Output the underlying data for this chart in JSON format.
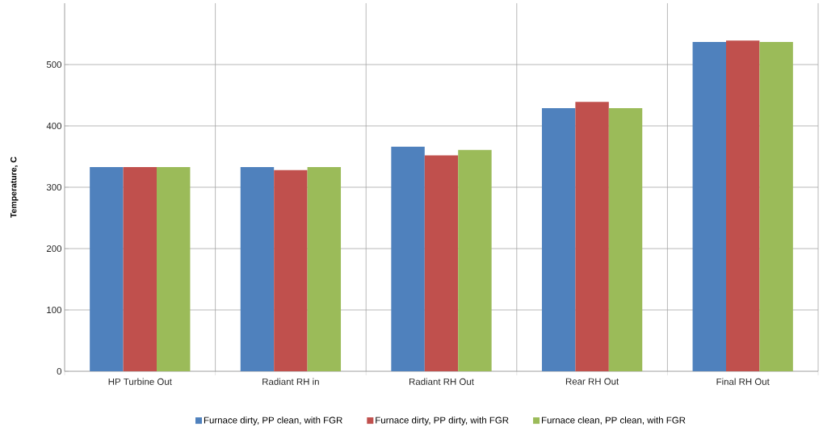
{
  "chart_data": {
    "type": "bar",
    "ylabel": "Temperature, C",
    "categories": [
      "HP Turbine Out",
      "Radiant RH in",
      "Radiant RH Out",
      "Rear RH Out",
      "Final RH Out"
    ],
    "series": [
      {
        "name": "Furnace dirty, PP clean, with FGR",
        "color": "#4f81bd",
        "values": [
          333,
          333,
          366,
          429,
          537
        ]
      },
      {
        "name": "Furnace dirty, PP dirty, with FGR",
        "color": "#c0504d",
        "values": [
          333,
          328,
          352,
          439,
          539
        ]
      },
      {
        "name": "Furnace clean, PP clean, with FGR",
        "color": "#9bbb59",
        "values": [
          333,
          333,
          361,
          429,
          537
        ]
      }
    ],
    "ylim": [
      0,
      600
    ],
    "yticks": [
      0,
      100,
      200,
      300,
      400,
      500
    ],
    "grid": true,
    "legend": "bottom"
  }
}
